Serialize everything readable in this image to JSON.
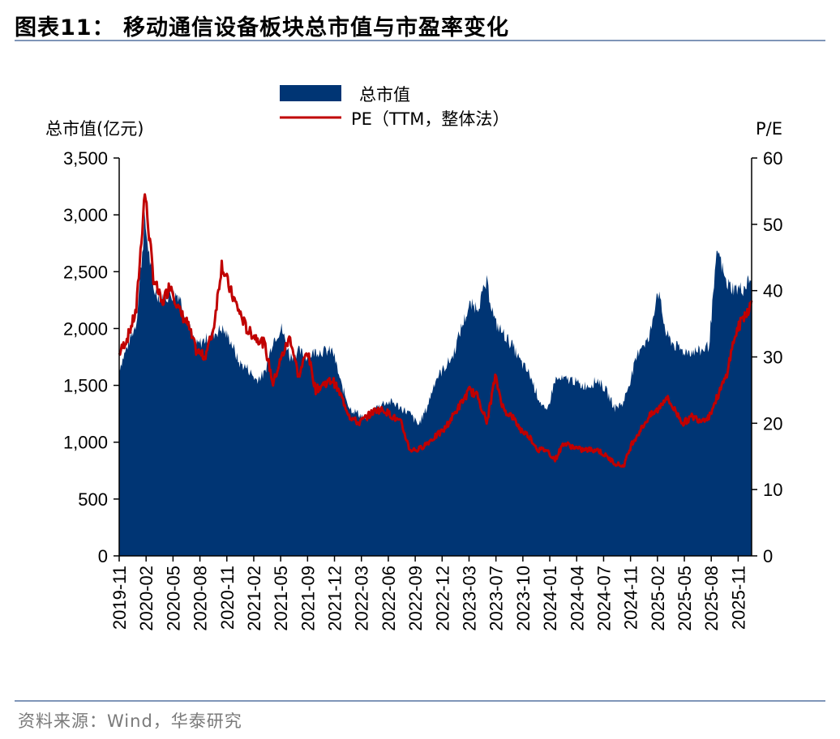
{
  "title": "图表11：  移动通信设备板块总市值与市盈率变化",
  "source": "资料来源：Wind，华泰研究",
  "colors": {
    "area": "#003574",
    "line": "#c00000",
    "rule": "#7f95b8"
  },
  "chart_data": {
    "type": "area",
    "left_axis": {
      "label": "总市值(亿元)",
      "range": [
        0,
        3500
      ],
      "ticks": [
        "0",
        "500",
        "1,000",
        "1,500",
        "2,000",
        "2,500",
        "3,000",
        "3,500"
      ]
    },
    "right_axis": {
      "label": "P/E",
      "range": [
        0,
        60
      ],
      "ticks": [
        "0",
        "10",
        "20",
        "30",
        "40",
        "50",
        "60"
      ]
    },
    "x_ticks": [
      "2019-11",
      "2020-02",
      "2020-05",
      "2020-08",
      "2020-11",
      "2021-02",
      "2021-05",
      "2021-09",
      "2021-12",
      "2022-03",
      "2022-06",
      "2022-09",
      "2022-12",
      "2023-03",
      "2023-07",
      "2023-10",
      "2024-01",
      "2024-04",
      "2024-07",
      "2024-11",
      "2025-02",
      "2025-05",
      "2025-08",
      "2025-11"
    ],
    "legend": {
      "position": "top-center",
      "entries": [
        "总市值",
        "PE（TTM，整体法）"
      ]
    },
    "x": [
      "2019-11",
      "2019-12",
      "2020-01",
      "2020-02",
      "2020-03",
      "2020-04",
      "2020-05",
      "2020-06",
      "2020-07",
      "2020-08",
      "2020-09",
      "2020-10",
      "2020-11",
      "2020-12",
      "2021-01",
      "2021-02",
      "2021-03",
      "2021-04",
      "2021-05",
      "2021-06",
      "2021-07",
      "2021-08",
      "2021-09",
      "2021-10",
      "2021-11",
      "2021-12",
      "2022-01",
      "2022-02",
      "2022-03",
      "2022-04",
      "2022-05",
      "2022-06",
      "2022-07",
      "2022-08",
      "2022-09",
      "2022-10",
      "2022-11",
      "2022-12",
      "2023-01",
      "2023-02",
      "2023-03",
      "2023-04",
      "2023-05",
      "2023-06",
      "2023-07",
      "2023-08",
      "2023-09",
      "2023-10",
      "2023-11",
      "2023-12",
      "2024-01",
      "2024-02",
      "2024-03",
      "2024-04",
      "2024-05",
      "2024-06",
      "2024-07",
      "2024-08",
      "2024-09",
      "2024-10",
      "2024-11",
      "2024-12",
      "2025-01",
      "2025-02",
      "2025-03",
      "2025-04",
      "2025-05",
      "2025-06",
      "2025-07",
      "2025-08",
      "2025-09",
      "2025-10",
      "2025-11",
      "2025-12",
      "2026-01"
    ],
    "series": [
      {
        "name": "总市值",
        "axis": "left",
        "type": "area",
        "values": [
          1650,
          1850,
          2050,
          2950,
          2350,
          2250,
          2300,
          2300,
          2050,
          1850,
          1900,
          1950,
          2000,
          1900,
          1700,
          1650,
          1550,
          1600,
          1900,
          2000,
          1750,
          1800,
          1750,
          1800,
          1800,
          1800,
          1500,
          1300,
          1250,
          1200,
          1300,
          1350,
          1350,
          1300,
          1250,
          1150,
          1300,
          1550,
          1650,
          1750,
          2000,
          2200,
          2200,
          2400,
          2050,
          1950,
          1850,
          1700,
          1600,
          1400,
          1250,
          1550,
          1550,
          1550,
          1500,
          1500,
          1550,
          1450,
          1300,
          1350,
          1600,
          1850,
          1900,
          2350,
          1950,
          1850,
          1800,
          1800,
          1800,
          1850,
          2700,
          2400,
          2350,
          2350,
          2450
        ]
      },
      {
        "name": "PE（TTM，整体法）",
        "axis": "right",
        "type": "line",
        "values": [
          30.5,
          33,
          37,
          55,
          42,
          38,
          41,
          37,
          35,
          31,
          30,
          34,
          44,
          40,
          37,
          34,
          33,
          32,
          26,
          30,
          33,
          27,
          31,
          25,
          26,
          26.5,
          24,
          21,
          20,
          21,
          22,
          22,
          21,
          20,
          16,
          16,
          17,
          18,
          19,
          21,
          23,
          25,
          24,
          20,
          27,
          22,
          21,
          19,
          18,
          16,
          16,
          14.5,
          17,
          16.5,
          16,
          16,
          16,
          15,
          14,
          13.5,
          17,
          19,
          21,
          22,
          24,
          22,
          20,
          21,
          20.5,
          21,
          24,
          27,
          33,
          36,
          38
        ]
      }
    ]
  }
}
